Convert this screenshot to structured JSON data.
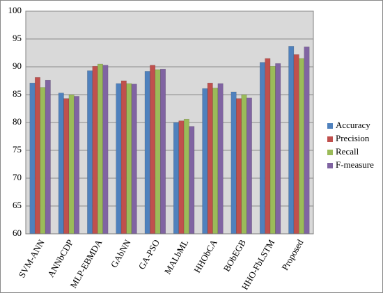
{
  "chart_data": {
    "type": "bar",
    "categories": [
      "SVM-ANN",
      "ANNbCDP",
      "MLP-EBMDA",
      "GAbNN",
      "GA-PSO",
      "MALbML",
      "HHObCA",
      "BObEGB",
      "HHO-FbLSTM",
      "Proposed"
    ],
    "series": [
      {
        "name": "Accuracy",
        "color": "#4f81bd",
        "values": [
          87.1,
          85.3,
          89.3,
          87.0,
          89.2,
          80.0,
          86.1,
          85.5,
          90.8,
          93.7
        ]
      },
      {
        "name": "Precision",
        "color": "#c0504d",
        "values": [
          88.1,
          84.3,
          90.1,
          87.5,
          90.3,
          80.3,
          87.1,
          84.3,
          91.5,
          92.2
        ]
      },
      {
        "name": "Recall",
        "color": "#9bbb59",
        "values": [
          86.3,
          85.0,
          90.5,
          87.0,
          89.5,
          80.6,
          86.2,
          85.0,
          90.1,
          91.5
        ]
      },
      {
        "name": "F-measure",
        "color": "#8064a2",
        "values": [
          87.6,
          84.7,
          90.3,
          86.9,
          89.6,
          79.3,
          87.0,
          84.4,
          90.6,
          93.6
        ]
      }
    ],
    "ylim": [
      60,
      100
    ],
    "yticks": [
      60,
      65,
      70,
      75,
      80,
      85,
      90,
      95,
      100
    ],
    "grid": true,
    "legend": "right"
  }
}
